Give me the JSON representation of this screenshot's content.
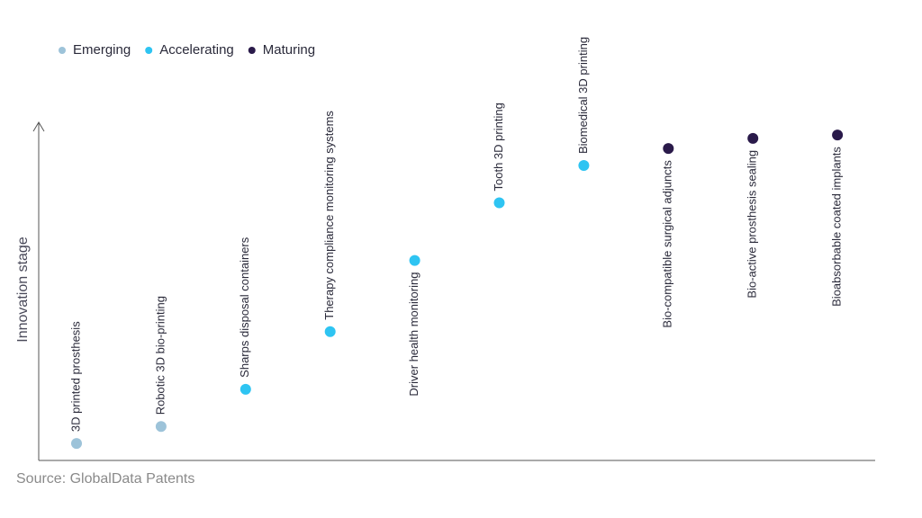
{
  "chart_data": {
    "type": "scatter",
    "y_label": "Innovation stage",
    "source": "Source: GlobalData Patents",
    "categories": [
      "3D printed prosthesis",
      "Robotic 3D bio-printing",
      "Sharps disposal containers",
      "Therapy compliance monitoring systems",
      "Driver health monitoring",
      "Tooth 3D printing",
      "Biomedical 3D printing",
      "Bio-compatible surgical adjuncts",
      "Bio-active prosthesis sealing",
      "Bioabsorbable coated implants"
    ],
    "series": [
      {
        "name": "Emerging",
        "color": "#9dc3d9",
        "values": [
          5,
          10,
          null,
          null,
          null,
          null,
          null,
          null,
          null,
          null
        ]
      },
      {
        "name": "Accelerating",
        "color": "#2ec4f2",
        "values": [
          null,
          null,
          21,
          38,
          59,
          76,
          87,
          null,
          null,
          null
        ]
      },
      {
        "name": "Maturing",
        "color": "#2a1a4a",
        "values": [
          null,
          null,
          null,
          null,
          null,
          null,
          null,
          92,
          95,
          96
        ]
      }
    ],
    "ylim": [
      0,
      100
    ]
  }
}
